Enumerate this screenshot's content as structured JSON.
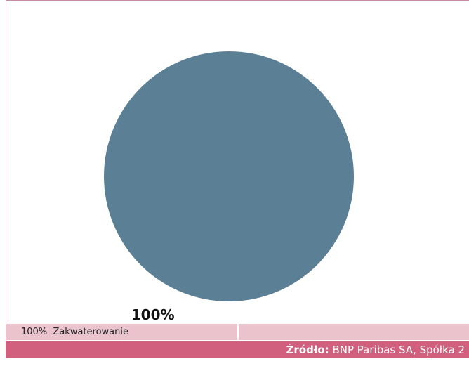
{
  "chart_data": {
    "type": "pie",
    "categories": [
      "Zakwaterowanie"
    ],
    "values": [
      100
    ],
    "value_labels": [
      "100%"
    ],
    "colors": [
      "#5b7f94"
    ]
  },
  "footer": {
    "source_label": "Źródło:",
    "source": "BNP Paribas SA, Spółka 2"
  }
}
